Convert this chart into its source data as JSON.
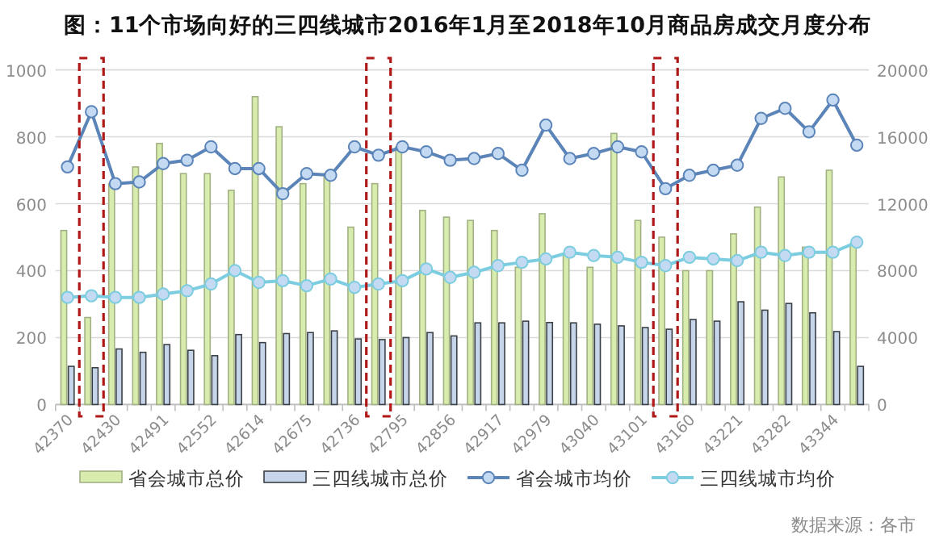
{
  "chart_data": {
    "type": "bar",
    "title": "图：11个市场向好的三四线城市2016年1月至2018年10月商品房成交月度分布",
    "categories": [
      "42370",
      null,
      "42430",
      null,
      "42491",
      null,
      "42552",
      null,
      "42614",
      null,
      "42675",
      null,
      "42736",
      null,
      "42795",
      null,
      "42856",
      null,
      "42917",
      null,
      "42979",
      null,
      "43040",
      null,
      "43101",
      null,
      "43160",
      null,
      "43221",
      null,
      "43282",
      null,
      "43344",
      null
    ],
    "series": [
      {
        "name": "省会城市总价",
        "color": "#d8ecae",
        "values": [
          520,
          260,
          660,
          710,
          780,
          690,
          690,
          640,
          920,
          830,
          660,
          690,
          530,
          660,
          770,
          580,
          560,
          550,
          520,
          410,
          570,
          450,
          410,
          810,
          550,
          500,
          400,
          400,
          510,
          590,
          680,
          470,
          700,
          480
        ]
      },
      {
        "name": "三四线城市总价",
        "color": "#c6d5ea",
        "values": [
          114,
          110,
          166,
          156,
          179,
          162,
          146,
          209,
          185,
          212,
          215,
          220,
          196,
          194,
          200,
          215,
          205,
          244,
          244,
          249,
          245,
          244,
          240,
          235,
          230,
          225,
          254,
          249,
          307,
          282,
          302,
          274,
          218,
          114
        ]
      },
      {
        "name": "省会城市均价",
        "type": "line",
        "axis": "y2",
        "color": "#5b84b8",
        "values": [
          14200,
          17500,
          13200,
          13300,
          14400,
          14600,
          15400,
          14100,
          14100,
          12600,
          13800,
          13700,
          15400,
          14900,
          15400,
          15100,
          14600,
          14700,
          15000,
          14000,
          16700,
          14700,
          15000,
          15400,
          15100,
          12900,
          13700,
          14000,
          14300,
          17100,
          17700,
          16300,
          18200,
          15500
        ]
      },
      {
        "name": "三四线城市均价",
        "type": "line",
        "axis": "y2",
        "color": "#7ccde0",
        "values": [
          6400,
          6500,
          6400,
          6400,
          6600,
          6800,
          7200,
          8000,
          7300,
          7400,
          7100,
          7500,
          7000,
          7200,
          7400,
          8100,
          7600,
          7900,
          8300,
          8500,
          8700,
          9100,
          8900,
          8800,
          8500,
          8300,
          8800,
          8700,
          8600,
          9100,
          8900,
          9100,
          9100,
          9700
        ]
      }
    ],
    "ylim": [
      0,
      1000
    ],
    "yticks": [
      0,
      200,
      400,
      600,
      800,
      1000
    ],
    "y2lim": [
      0,
      20000
    ],
    "y2ticks": [
      0,
      4000,
      8000,
      12000,
      16000,
      20000
    ],
    "grid": "y",
    "legend": "bottom",
    "marker": "circle",
    "annotations": [
      "数据来源：各市"
    ]
  }
}
